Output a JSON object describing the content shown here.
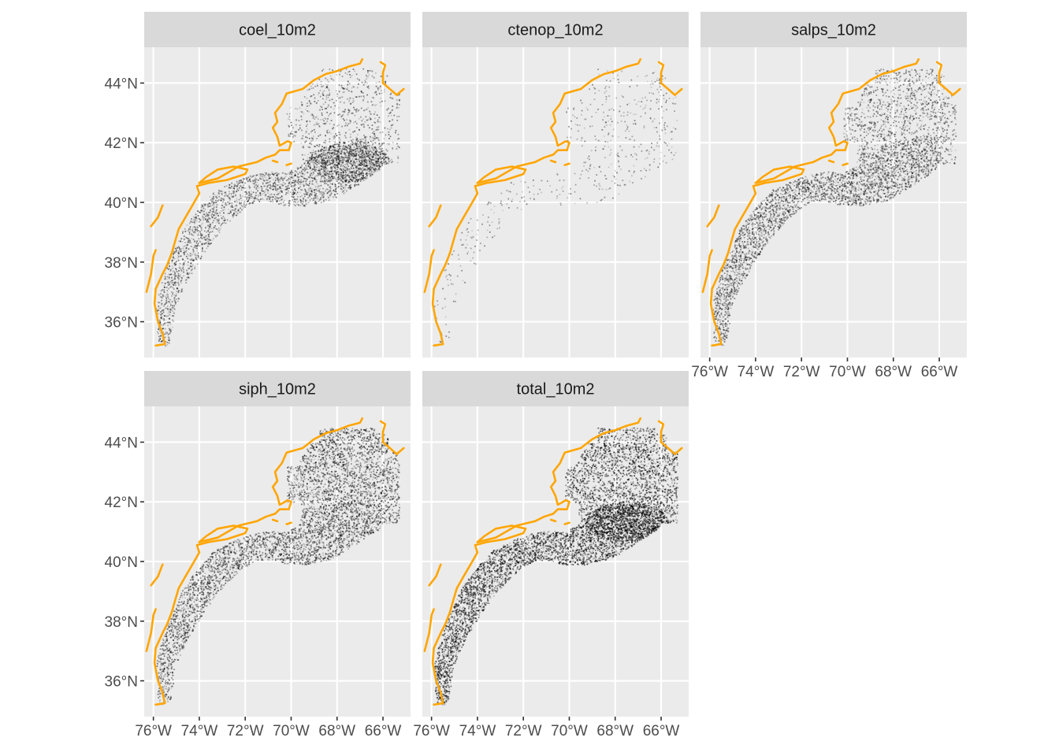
{
  "figure": {
    "type": "faceted-map",
    "facet_columns": 3,
    "coastline_color": "#FFA500",
    "point_color": "#000000",
    "panel_background": "#EBEBEB",
    "strip_background": "#D9D9D9",
    "gridline_color": "#FFFFFF"
  },
  "chart_data": {
    "type": "scatter",
    "xlim": [
      -76.4,
      -64.8
    ],
    "ylim": [
      34.8,
      45.2
    ],
    "x_ticks": [
      -76,
      -74,
      -72,
      -70,
      -68,
      -66
    ],
    "x_tick_labels": [
      "76°W",
      "74°W",
      "72°W",
      "70°W",
      "68°W",
      "66°W"
    ],
    "y_ticks": [
      36,
      38,
      40,
      42,
      44
    ],
    "y_tick_labels": [
      "36°N",
      "38°N",
      "40°N",
      "42°N",
      "44°N"
    ],
    "grid": true,
    "coastline": [
      [
        [
          -75.9,
          35.2
        ],
        [
          -75.5,
          35.25
        ],
        [
          -75.6,
          35.6
        ],
        [
          -75.8,
          36.0
        ],
        [
          -75.95,
          36.6
        ],
        [
          -75.9,
          37.1
        ],
        [
          -75.6,
          37.6
        ],
        [
          -75.4,
          37.9
        ],
        [
          -75.2,
          38.3
        ],
        [
          -75.05,
          38.7
        ],
        [
          -74.9,
          39.1
        ],
        [
          -74.6,
          39.5
        ],
        [
          -74.3,
          39.9
        ],
        [
          -74.0,
          40.3
        ],
        [
          -74.1,
          40.55
        ],
        [
          -73.6,
          40.65
        ],
        [
          -72.8,
          40.75
        ],
        [
          -72.0,
          40.95
        ],
        [
          -71.9,
          41.1
        ],
        [
          -72.5,
          41.2
        ],
        [
          -73.2,
          41.1
        ],
        [
          -73.7,
          40.85
        ],
        [
          -74.0,
          40.65
        ]
      ],
      [
        [
          -74.0,
          40.65
        ],
        [
          -73.2,
          40.8
        ],
        [
          -72.3,
          41.2
        ],
        [
          -71.5,
          41.35
        ],
        [
          -71.1,
          41.5
        ],
        [
          -70.7,
          41.6
        ],
        [
          -70.5,
          41.75
        ],
        [
          -70.1,
          41.75
        ],
        [
          -70.0,
          42.0
        ],
        [
          -70.15,
          42.05
        ],
        [
          -70.5,
          41.9
        ],
        [
          -70.6,
          42.2
        ],
        [
          -70.8,
          42.5
        ],
        [
          -70.6,
          42.7
        ],
        [
          -70.7,
          43.0
        ],
        [
          -70.4,
          43.3
        ],
        [
          -70.2,
          43.65
        ],
        [
          -69.5,
          43.8
        ],
        [
          -69.0,
          44.1
        ],
        [
          -68.5,
          44.3
        ],
        [
          -68.0,
          44.4
        ],
        [
          -67.5,
          44.55
        ],
        [
          -67.0,
          44.65
        ],
        [
          -66.9,
          44.8
        ]
      ],
      [
        [
          -66.1,
          44.7
        ],
        [
          -65.9,
          44.6
        ],
        [
          -66.0,
          44.35
        ],
        [
          -66.0,
          44.0
        ],
        [
          -65.7,
          43.8
        ],
        [
          -65.4,
          43.6
        ],
        [
          -65.1,
          43.8
        ]
      ],
      [
        [
          -70.0,
          41.3
        ],
        [
          -70.2,
          41.25
        ]
      ],
      [
        [
          -70.6,
          41.35
        ],
        [
          -70.8,
          41.4
        ]
      ],
      [
        [
          -76.1,
          39.2
        ],
        [
          -75.8,
          39.5
        ],
        [
          -75.6,
          39.9
        ]
      ],
      [
        [
          -76.3,
          37.0
        ],
        [
          -76.1,
          37.6
        ],
        [
          -76.0,
          38.2
        ],
        [
          -75.9,
          38.4
        ]
      ]
    ],
    "facets": [
      {
        "label": "coel_10m2",
        "points": 3800,
        "density_profile": "coel"
      },
      {
        "label": "ctenop_10m2",
        "points": 520,
        "density_profile": "ctenop"
      },
      {
        "label": "salps_10m2",
        "points": 4200,
        "density_profile": "salps"
      },
      {
        "label": "siph_10m2",
        "points": 4800,
        "density_profile": "siph"
      },
      {
        "label": "total_10m2",
        "points": 6500,
        "density_profile": "total"
      }
    ]
  }
}
